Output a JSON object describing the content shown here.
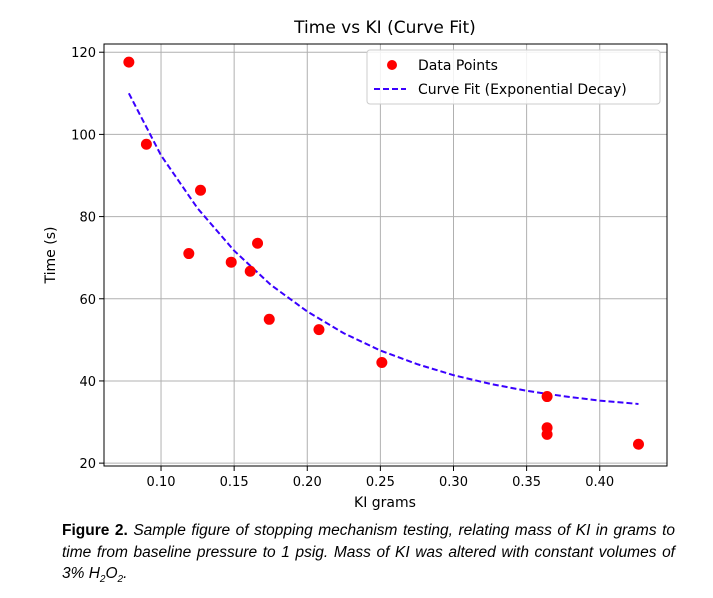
{
  "chart_data": {
    "type": "scatter",
    "title": "Time vs KI (Curve Fit)",
    "xlabel": "KI grams",
    "ylabel": "Time (s)",
    "xlim": [
      0.061,
      0.446
    ],
    "ylim": [
      19.3,
      122
    ],
    "xticks": [
      0.1,
      0.15,
      0.2,
      0.25,
      0.3,
      0.35,
      0.4
    ],
    "xtick_labels": [
      "0.10",
      "0.15",
      "0.20",
      "0.25",
      "0.30",
      "0.35",
      "0.40"
    ],
    "yticks": [
      20,
      40,
      60,
      80,
      100,
      120
    ],
    "ytick_labels": [
      "20",
      "40",
      "60",
      "80",
      "100",
      "120"
    ],
    "grid": true,
    "legend_position": "top-right",
    "series": [
      {
        "name": "Data Points",
        "kind": "scatter",
        "color": "#ff0000",
        "x": [
          0.078,
          0.09,
          0.127,
          0.119,
          0.148,
          0.166,
          0.161,
          0.174,
          0.208,
          0.251,
          0.364,
          0.364,
          0.364,
          0.4265
        ],
        "y": [
          117.6,
          97.6,
          86.4,
          71.0,
          68.9,
          73.5,
          66.7,
          55.0,
          52.5,
          44.5,
          36.2,
          28.6,
          27.0,
          24.6
        ]
      },
      {
        "name": "Curve Fit (Exponential Decay)",
        "kind": "dashed-line",
        "color": "#3a00ff",
        "x": [
          0.078,
          0.1,
          0.125,
          0.15,
          0.175,
          0.2,
          0.225,
          0.25,
          0.275,
          0.3,
          0.325,
          0.35,
          0.375,
          0.4,
          0.4265
        ],
        "y": [
          110.0,
          94.9,
          82.0,
          71.7,
          63.4,
          56.9,
          51.6,
          47.4,
          44.1,
          41.4,
          39.3,
          37.6,
          36.3,
          35.2,
          34.4
        ]
      }
    ]
  },
  "caption": {
    "label": "Figure 2.",
    "text": "Sample figure of stopping mechanism testing, relating mass of KI in grams to time from baseline pressure to 1 psig. Mass of KI was altered with constant volumes of 3% H",
    "sub1": "2",
    "o": "O",
    "sub2": "2",
    "end": "."
  }
}
